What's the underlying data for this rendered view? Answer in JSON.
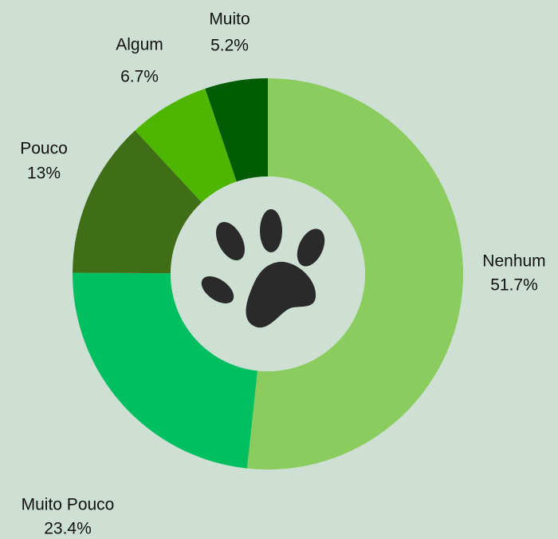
{
  "chart_data": {
    "type": "donut",
    "categories": [
      "Nenhum",
      "Muito Pouco",
      "Pouco",
      "Algum",
      "Muito"
    ],
    "values": [
      51.7,
      23.4,
      13,
      6.7,
      5.2
    ],
    "value_labels": [
      "51.7%",
      "23.4%",
      "13%",
      "6.7%",
      "5.2%"
    ],
    "colors": [
      "#8bcc5f",
      "#00bf60",
      "#3f6e17",
      "#4fb600",
      "#005c00"
    ]
  }
}
